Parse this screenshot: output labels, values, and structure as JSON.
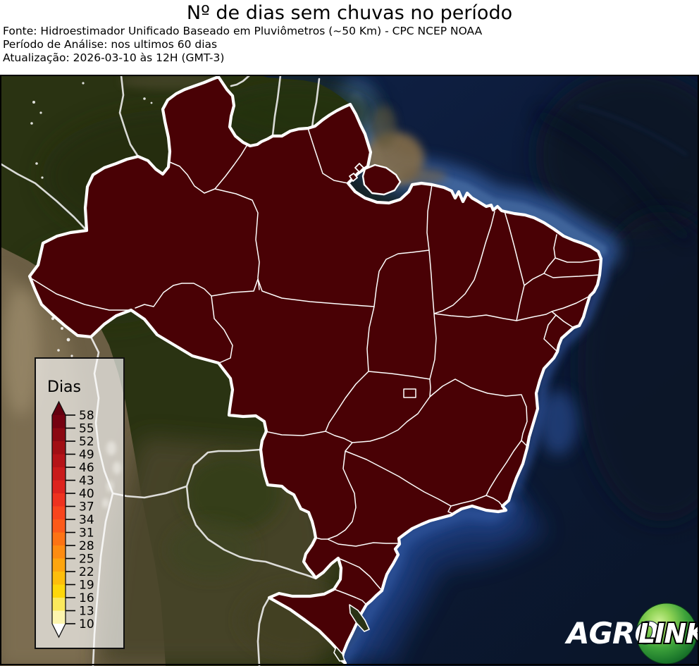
{
  "header": {
    "title": "Nº de dias sem chuvas no período",
    "source": "Fonte: Hidroestimador Unificado Baseado em Pluviômetros (~50 Km) - CPC NCEP NOAA",
    "period": "Período de Análise: nos ultimos 60 dias",
    "updated": "Atualização: 2026-03-10 às 12H (GMT-3)"
  },
  "legend": {
    "title": "Dias",
    "ticks": [
      "58",
      "55",
      "52",
      "49",
      "46",
      "43",
      "40",
      "37",
      "34",
      "31",
      "28",
      "25",
      "22",
      "19",
      "16",
      "13",
      "10"
    ],
    "segment_colors": [
      "#750111",
      "#8b0812",
      "#a10e14",
      "#b51318",
      "#c91a1b",
      "#dd231e",
      "#ee321f",
      "#f8451d",
      "#fc5a19",
      "#fd7314",
      "#fe8c11",
      "#fea50e",
      "#febe0b",
      "#fed70a",
      "#fbe95c",
      "#fdf5ae"
    ],
    "arrow_top_color": "#63000f",
    "arrow_bottom_color": "#ffffff"
  },
  "map": {
    "state_fill": "#490105",
    "border_color": "#ffffff"
  },
  "logo": {
    "agro": "AGRO",
    "link": "LINK",
    "ball_color": "#3da23a"
  },
  "chart_data": {
    "type": "choropleth",
    "title": "Nº de dias sem chuvas no período",
    "region": "Brasil — unidades federativas",
    "legend_label": "Dias",
    "scale_ticks": [
      58,
      55,
      52,
      49,
      46,
      43,
      40,
      37,
      34,
      31,
      28,
      25,
      22,
      19,
      16,
      13,
      10
    ],
    "scale_range": [
      10,
      58
    ],
    "observed": "Todos os estados aparecem na cor máxima da escala (≥ 58 dias sem chuva)"
  }
}
